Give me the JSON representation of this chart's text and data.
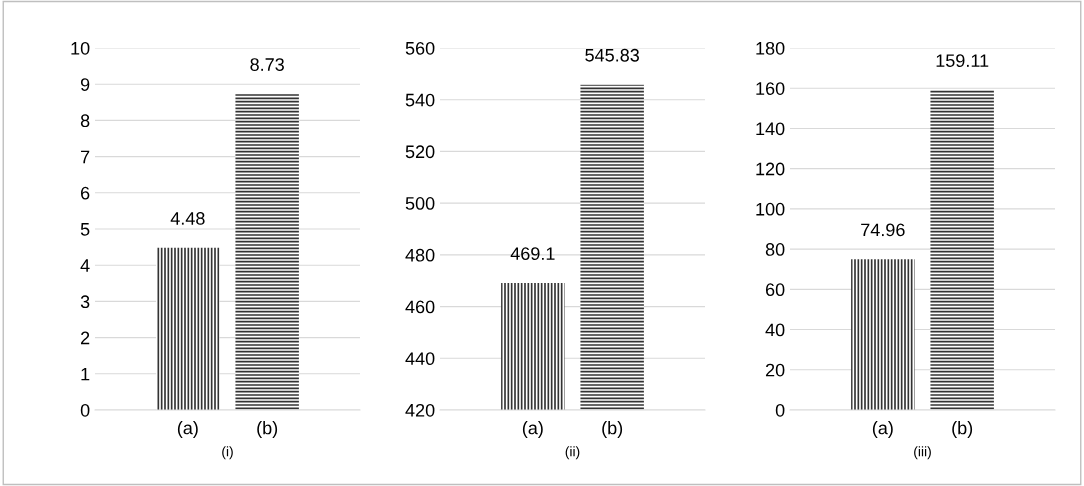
{
  "chart_data": [
    {
      "type": "bar",
      "xlabel": "(i)",
      "categories": [
        "(a)",
        "(b)"
      ],
      "values": [
        4.48,
        8.73
      ],
      "colors": [
        "#333333",
        "#333333"
      ],
      "ylim": [
        0,
        10
      ],
      "yticks": [
        0,
        1,
        2,
        3,
        4,
        5,
        6,
        7,
        8,
        9,
        10
      ],
      "grid": "y",
      "data_labels": true
    },
    {
      "type": "bar",
      "xlabel": "(ii)",
      "categories": [
        "(a)",
        "(b)"
      ],
      "values": [
        469.1,
        545.83
      ],
      "colors": [
        "#333333",
        "#333333"
      ],
      "ylim": [
        420,
        560
      ],
      "yticks": [
        420,
        440,
        460,
        480,
        500,
        520,
        540,
        560
      ],
      "grid": "y",
      "data_labels": true
    },
    {
      "type": "bar",
      "xlabel": "(iii)",
      "categories": [
        "(a)",
        "(b)"
      ],
      "values": [
        74.96,
        159.11
      ],
      "colors": [
        "#333333",
        "#333333"
      ],
      "ylim": [
        0,
        180
      ],
      "yticks": [
        0,
        20,
        40,
        60,
        80,
        100,
        120,
        140,
        160,
        180
      ],
      "grid": "y",
      "data_labels": true
    }
  ]
}
